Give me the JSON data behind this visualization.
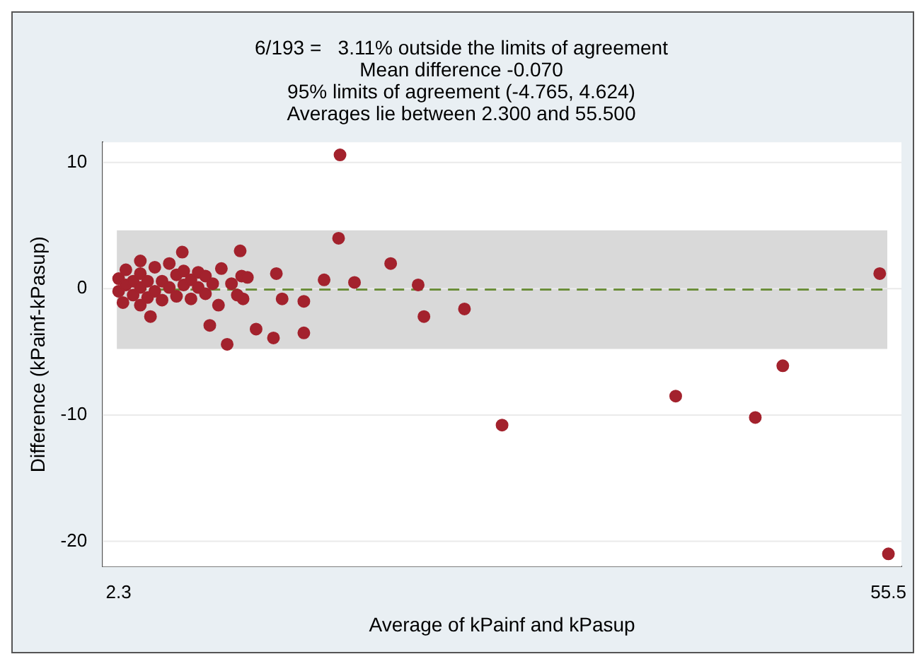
{
  "chart_data": {
    "type": "scatter",
    "title": "6/193 =   3.11% outside the limits of agreement\nMean difference -0.070\n95% limits of agreement (-4.765, 4.624)\nAverages lie between 2.300 and 55.500",
    "xlabel": "Average of kPainf and kPasup",
    "ylabel": "Difference (kPainf-kPasup)",
    "xlim": [
      1.2,
      56.4
    ],
    "xticks": [
      2.3,
      55.5
    ],
    "ylim": [
      -22,
      11.6
    ],
    "yticks": [
      -20,
      -10,
      0,
      10
    ],
    "grid": "y",
    "legend": false,
    "marker": "circle",
    "bands": [
      {
        "axis": "y",
        "from": -4.765,
        "to": 4.624,
        "color": "#d9d9d9"
      }
    ],
    "ref_lines": [
      {
        "axis": "y",
        "value": -0.07,
        "color": "#6b8e3a",
        "line_style": "dashed"
      }
    ],
    "series": [
      {
        "color": "#a3222d",
        "x": [
          17.6,
          17.5,
          6.7,
          10.7,
          21.1,
          13.2,
          16.5,
          18.6,
          23.0,
          23.4,
          26.2,
          13.6,
          15.1,
          15.1,
          13.0,
          11.8,
          9.8,
          8.6,
          9.2,
          10.9,
          10.5,
          9.4,
          10.8,
          11.2,
          10.1,
          4.5,
          2.6,
          28.8,
          40.8,
          46.3,
          48.2,
          54.9,
          55.5,
          2.3,
          2.3,
          2.8,
          2.8,
          3.3,
          3.3,
          3.8,
          3.8,
          3.8,
          3.8,
          4.3,
          4.3,
          4.8,
          4.8,
          5.3,
          5.3,
          5.8,
          5.8,
          6.3,
          6.3,
          6.8,
          6.8,
          7.3,
          7.3,
          7.8,
          7.8,
          8.3,
          8.3,
          8.8
        ],
        "values": [
          10.6,
          4.0,
          2.9,
          3.0,
          2.0,
          1.2,
          0.7,
          0.5,
          0.3,
          -2.2,
          -1.6,
          -0.8,
          -1.0,
          -3.5,
          -3.9,
          -3.2,
          -4.4,
          -2.9,
          -1.3,
          -0.8,
          -0.5,
          1.6,
          1.0,
          0.9,
          0.4,
          -2.2,
          -1.1,
          -10.8,
          -8.5,
          -10.2,
          -6.1,
          1.2,
          -21.0,
          -0.2,
          0.8,
          0.3,
          1.5,
          -0.5,
          0.6,
          -1.3,
          0.1,
          1.2,
          2.2,
          -0.7,
          0.6,
          -0.2,
          1.7,
          -0.9,
          0.6,
          0.1,
          2.0,
          -0.6,
          1.1,
          0.3,
          1.4,
          -0.8,
          0.7,
          0.1,
          1.3,
          -0.4,
          1.0,
          0.4
        ]
      }
    ]
  }
}
